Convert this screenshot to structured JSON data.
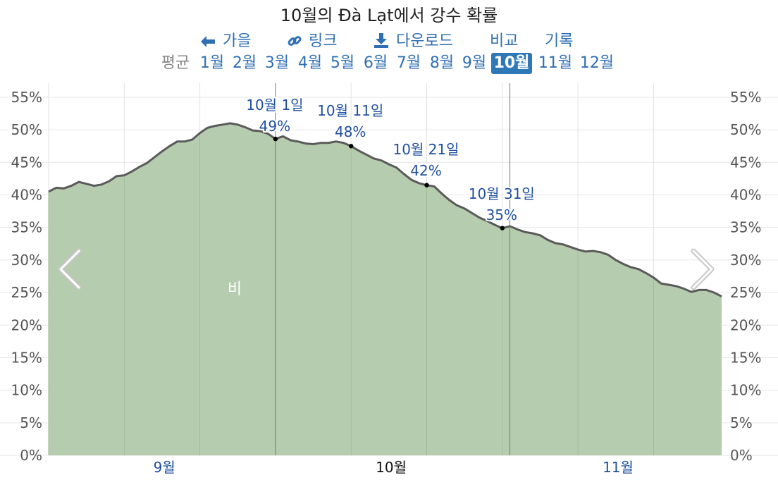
{
  "title": "10월의 Đà Lạt에서 강수 확률",
  "nav": {
    "back": "가을",
    "link": "링크",
    "download": "다운로드",
    "compare": "비교",
    "history": "기록"
  },
  "months": {
    "avg": "평균",
    "items": [
      "1월",
      "2월",
      "3월",
      "4월",
      "5월",
      "6월",
      "7월",
      "8월",
      "9월",
      "10월",
      "11월",
      "12월"
    ],
    "active_index": 9
  },
  "colors": {
    "area": "#b5ccae",
    "line": "#5a5a5a",
    "link": "#2f6fb3",
    "active_bg": "#2f78b8",
    "annotation": "#1f4fa0"
  },
  "chart_data": {
    "type": "area",
    "series_label": "비",
    "y_ticks": [
      "0%",
      "5%",
      "10%",
      "15%",
      "20%",
      "25%",
      "30%",
      "35%",
      "40%",
      "45%",
      "50%",
      "55%"
    ],
    "ylim": [
      0,
      55
    ],
    "x_labels": [
      "9월",
      "10월",
      "11월"
    ],
    "current_x_label": "10월",
    "day_start": -30,
    "values": [
      40.5,
      41.1,
      41.0,
      41.4,
      42.0,
      41.7,
      41.4,
      41.6,
      42.1,
      42.9,
      43.0,
      43.6,
      44.3,
      44.9,
      45.8,
      46.7,
      47.5,
      48.2,
      48.2,
      48.5,
      49.5,
      50.3,
      50.6,
      50.8,
      51.0,
      50.8,
      50.4,
      49.9,
      49.8,
      49.4,
      48.6,
      49.0,
      48.4,
      48.2,
      47.9,
      47.8,
      48.0,
      48.0,
      48.2,
      48.0,
      47.5,
      46.8,
      46.2,
      45.6,
      45.3,
      44.7,
      44.2,
      43.2,
      42.3,
      41.8,
      41.5,
      41.3,
      40.2,
      39.2,
      38.4,
      37.9,
      37.2,
      36.5,
      36.0,
      35.4,
      34.9,
      35.2,
      34.7,
      34.3,
      34.1,
      33.8,
      33.1,
      32.6,
      32.4,
      32.0,
      31.6,
      31.3,
      31.4,
      31.2,
      30.8,
      30.0,
      29.4,
      28.9,
      28.6,
      28.0,
      27.3,
      26.4,
      26.2,
      26.0,
      25.6,
      25.1,
      25.4,
      25.4,
      25.0,
      24.4
    ],
    "annotations": [
      {
        "day": 0,
        "label": "10월 1일",
        "value_label": "49%",
        "value": 48.6
      },
      {
        "day": 10,
        "label": "10월 11일",
        "value_label": "48%",
        "value": 47.5
      },
      {
        "day": 20,
        "label": "10월 21일",
        "value_label": "42%",
        "value": 41.5
      },
      {
        "day": 30,
        "label": "10월 31일",
        "value_label": "35%",
        "value": 34.9
      }
    ]
  }
}
